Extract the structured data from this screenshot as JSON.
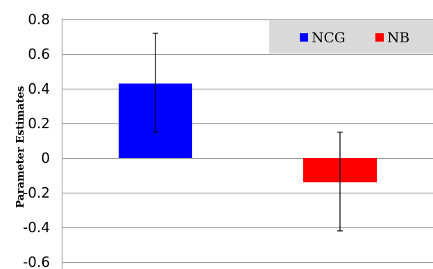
{
  "chart_data": {
    "type": "bar",
    "title": "",
    "xlabel": "",
    "ylabel": "Parameter Estimates",
    "ylim": [
      -0.6,
      0.8
    ],
    "yticks": [
      -0.6,
      -0.4,
      -0.2,
      0,
      0.2,
      0.4,
      0.6,
      0.8
    ],
    "ytick_labels": [
      "-0.6",
      "-0.4",
      "-0.2",
      "0",
      "0.2",
      "0.4",
      "0.6",
      "0.8"
    ],
    "grid": true,
    "legend_position": "top-right",
    "series": [
      {
        "name": "NCG",
        "value": 0.43,
        "error_low": 0.15,
        "error_high": 0.72,
        "color": "#0000ff"
      },
      {
        "name": "NB",
        "value": -0.14,
        "error_low": -0.42,
        "error_high": 0.15,
        "color": "#ff0000"
      }
    ]
  },
  "colors": {
    "grid": "#9a9a9a",
    "legend_bg": "#d9d9d9",
    "error_bar": "#000000",
    "frame": "#000000"
  }
}
